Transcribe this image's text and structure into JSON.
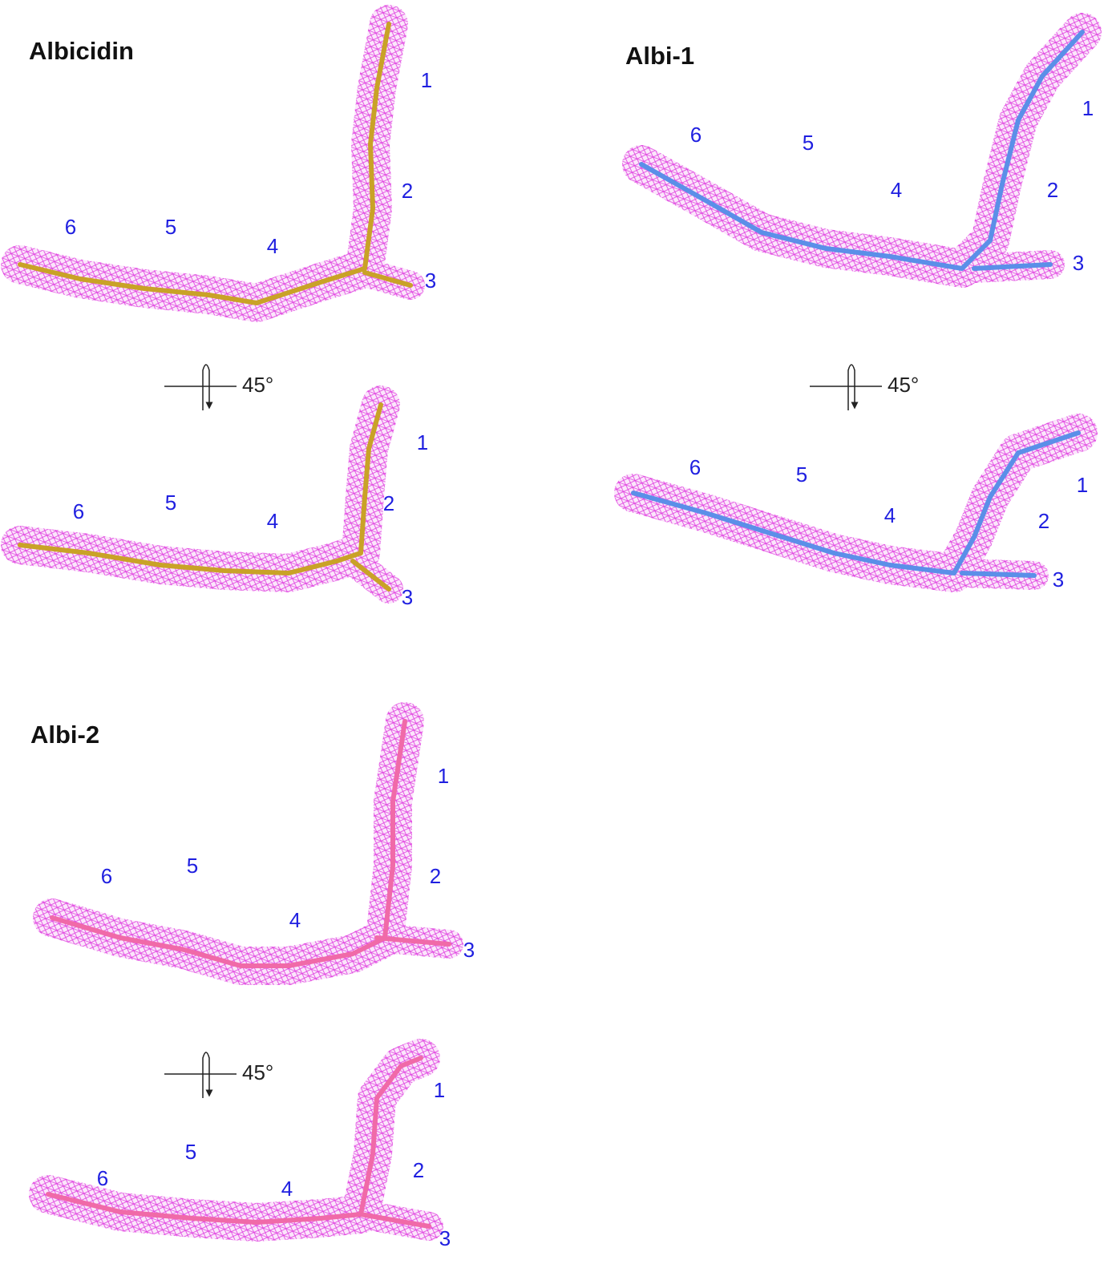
{
  "panels": [
    {
      "title": "Albicidin",
      "rotation": "45°",
      "views": [
        {
          "labels": [
            "1",
            "2",
            "3",
            "4",
            "5",
            "6"
          ]
        },
        {
          "labels": [
            "1",
            "2",
            "3",
            "4",
            "5",
            "6"
          ]
        }
      ]
    },
    {
      "title": "Albi-1",
      "rotation": "45°",
      "views": [
        {
          "labels": [
            "1",
            "2",
            "3",
            "4",
            "5",
            "6"
          ]
        },
        {
          "labels": [
            "1",
            "2",
            "3",
            "4",
            "5",
            "6"
          ]
        }
      ]
    },
    {
      "title": "Albi-2",
      "rotation": "45°",
      "views": [
        {
          "labels": [
            "1",
            "2",
            "3",
            "4",
            "5",
            "6"
          ]
        },
        {
          "labels": [
            "1",
            "2",
            "3",
            "4",
            "5",
            "6"
          ]
        }
      ]
    }
  ]
}
